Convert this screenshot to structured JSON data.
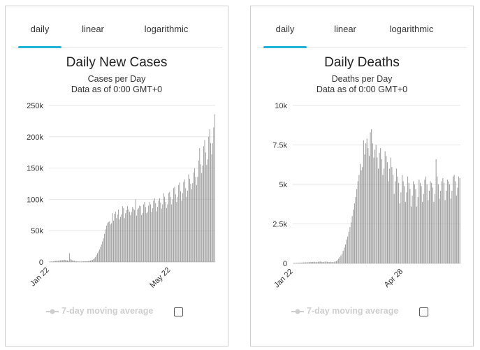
{
  "colors": {
    "accent": "#22b4d8",
    "bar": "#999999",
    "grid": "#e6e6e6",
    "legend_disabled": "#cfcfcf"
  },
  "panels": [
    {
      "id": "cases",
      "tabs": [
        "daily",
        "linear",
        "logarithmic"
      ],
      "active_tab": 0,
      "title": "Daily New Cases",
      "subtitle": "Cases per Day",
      "subtitle2": "Data as of 0:00 GMT+0",
      "legend_label": "7-day moving average",
      "chart_data": {
        "type": "bar",
        "title": "Daily New Cases",
        "ylabel": "Cases per Day",
        "ylim": [
          0,
          250000
        ],
        "yticks": [
          0,
          50000,
          100000,
          150000,
          200000,
          250000
        ],
        "ytick_labels": [
          "0",
          "50k",
          "100k",
          "150k",
          "200k",
          "250k"
        ],
        "xtick_labels": [
          {
            "label": "Jan 22",
            "index": 0
          },
          {
            "label": "May 22",
            "index": 121
          }
        ],
        "categories_start": "Jan 22",
        "values": [
          500,
          600,
          800,
          700,
          1200,
          1500,
          1800,
          2000,
          1700,
          2100,
          2500,
          2600,
          3000,
          2800,
          3100,
          3500,
          3000,
          2700,
          2600,
          2000,
          14000,
          5000,
          3500,
          2500,
          2100,
          2000,
          1500,
          1000,
          900,
          700,
          800,
          600,
          800,
          900,
          1000,
          1100,
          1200,
          1000,
          1100,
          1500,
          1800,
          2300,
          3000,
          3500,
          4500,
          6000,
          8000,
          11000,
          14000,
          17000,
          20000,
          24000,
          28000,
          33000,
          38000,
          45000,
          52000,
          58000,
          62000,
          64000,
          65000,
          60000,
          62000,
          78000,
          66000,
          77000,
          80000,
          70000,
          76000,
          84000,
          68000,
          72000,
          76000,
          89000,
          86000,
          70000,
          78000,
          83000,
          89000,
          84000,
          80000,
          75000,
          80000,
          88000,
          85000,
          83000,
          100000,
          74000,
          84000,
          86000,
          90000,
          89000,
          75000,
          78000,
          92000,
          96000,
          88000,
          78000,
          80000,
          90000,
          96000,
          92000,
          80000,
          86000,
          98000,
          102000,
          94000,
          81000,
          88000,
          98000,
          102000,
          95000,
          85000,
          92000,
          110000,
          104000,
          96000,
          86000,
          92000,
          110000,
          112000,
          104000,
          92000,
          100000,
          118000,
          120000,
          108000,
          96000,
          104000,
          123000,
          127000,
          113000,
          98000,
          110000,
          128000,
          132000,
          118000,
          104000,
          114000,
          140000,
          133000,
          125000,
          116000,
          126000,
          143000,
          150000,
          136000,
          123000,
          136000,
          162000,
          182000,
          156000,
          142000,
          154000,
          185000,
          195000,
          175000,
          155000,
          164000,
          200000,
          212000,
          190000,
          172000,
          190000,
          215000,
          236000
        ]
      }
    },
    {
      "id": "deaths",
      "tabs": [
        "daily",
        "linear",
        "logarithmic"
      ],
      "active_tab": 0,
      "title": "Daily Deaths",
      "subtitle": "Deaths per Day",
      "subtitle2": "Data as of 0:00 GMT+0",
      "legend_label": "7-day moving average",
      "chart_data": {
        "type": "bar",
        "title": "Daily Deaths",
        "ylabel": "Deaths per Day",
        "ylim": [
          0,
          10000
        ],
        "yticks": [
          0,
          2500,
          5000,
          7500,
          10000
        ],
        "ytick_labels": [
          "0",
          "2.5k",
          "5k",
          "7.5k",
          "10k"
        ],
        "xtick_labels": [
          {
            "label": "Jan 22",
            "index": 0
          },
          {
            "label": "Apr 28",
            "index": 97
          }
        ],
        "categories_start": "Jan 22",
        "values": [
          20,
          25,
          30,
          35,
          40,
          45,
          45,
          50,
          55,
          60,
          60,
          70,
          70,
          75,
          80,
          90,
          80,
          90,
          95,
          100,
          90,
          80,
          100,
          110,
          120,
          100,
          90,
          100,
          110,
          120,
          100,
          90,
          80,
          100,
          90,
          80,
          100,
          120,
          150,
          200,
          300,
          400,
          500,
          600,
          800,
          1000,
          1200,
          1500,
          1700,
          2000,
          2300,
          2600,
          3000,
          3400,
          3800,
          4200,
          4700,
          5200,
          5600,
          6300,
          5900,
          6100,
          7800,
          6900,
          7600,
          7900,
          7300,
          6800,
          8300,
          8500,
          7600,
          6700,
          7200,
          7500,
          6700,
          6000,
          7000,
          7300,
          6600,
          5600,
          6000,
          7100,
          6800,
          6400,
          5200,
          6000,
          6700,
          6100,
          5600,
          4400,
          5200,
          6000,
          5500,
          5100,
          3800,
          4500,
          5600,
          5200,
          4900,
          3900,
          4500,
          5500,
          5100,
          4700,
          3600,
          4300,
          5200,
          5000,
          4700,
          3600,
          4200,
          5300,
          5100,
          4900,
          3900,
          4400,
          5300,
          5500,
          5000,
          4000,
          4600,
          5200,
          5100,
          4800,
          3900,
          4400,
          6600,
          5500,
          5000,
          4100,
          4600,
          5200,
          5400,
          5100,
          4000,
          4600,
          5300,
          5200,
          5000,
          4100,
          4600,
          5500,
          5600,
          5200,
          4300,
          4800,
          5500,
          5400
        ]
      }
    }
  ]
}
